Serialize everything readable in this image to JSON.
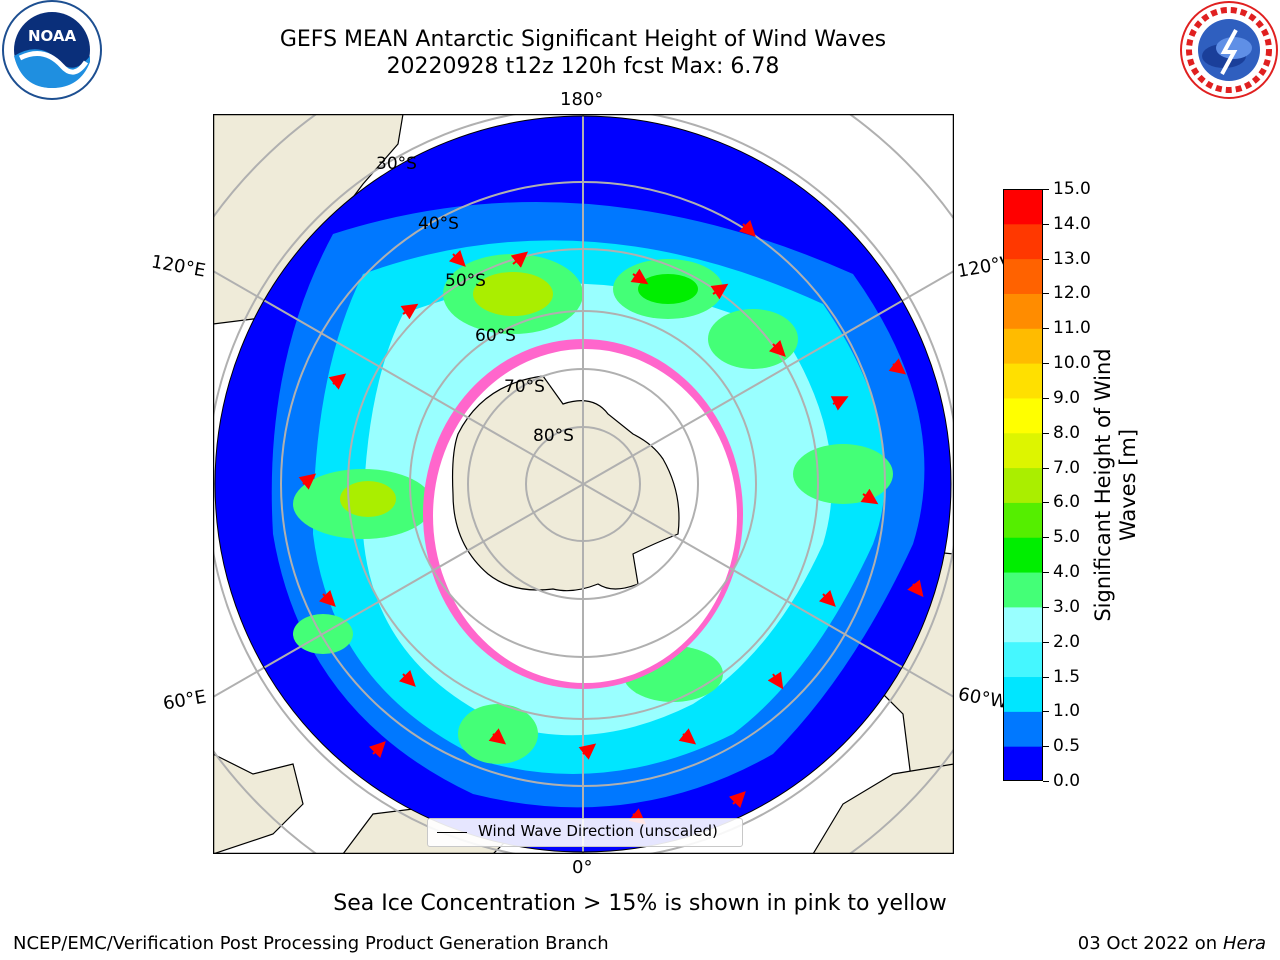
{
  "title": {
    "line1": "GEFS MEAN Antarctic Significant Height of Wind Waves",
    "line2": "20220928 t12z 120h fcst   Max: 6.78"
  },
  "map": {
    "projection": "south-polar-stereographic",
    "longitude_labels": {
      "top": "180°",
      "bottom": "0°",
      "left_upper": "120°E",
      "left_lower": "60°E",
      "right_upper": "120°W",
      "right_lower": "60°W"
    },
    "latitude_labels": [
      "30°S",
      "40°S",
      "50°S",
      "60°S",
      "70°S",
      "80°S"
    ],
    "legend": "Wind Wave Direction (unscaled)",
    "colors": {
      "ocean_field": "#00e6ff",
      "land": "#efebd9",
      "sea_ice": "#ff66cc"
    }
  },
  "colorbar": {
    "label": "Significant Height of Wind Waves [m]",
    "label_line1": "Significant Height of Wind",
    "label_line2": "Waves [m]",
    "ticks": [
      "0.0",
      "0.5",
      "1.0",
      "1.5",
      "2.0",
      "3.0",
      "4.0",
      "5.0",
      "6.0",
      "7.0",
      "8.0",
      "9.0",
      "10.0",
      "11.0",
      "12.0",
      "13.0",
      "14.0",
      "15.0"
    ],
    "colors": [
      "#0000ff",
      "#0078ff",
      "#00e6ff",
      "#45f7ff",
      "#99ffff",
      "#44ff77",
      "#00ee00",
      "#55ee00",
      "#aaee00",
      "#ddf500",
      "#ffff00",
      "#ffe000",
      "#ffbb00",
      "#ff8c00",
      "#ff6200",
      "#ff3800",
      "#ff0000"
    ]
  },
  "footnote": "Sea Ice Concentration > 15% is shown in pink to yellow",
  "credit": "NCEP/EMC/Verification Post Processing Product Generation Branch",
  "date": {
    "text": "03 Oct 2022 on ",
    "host": "Hera"
  }
}
